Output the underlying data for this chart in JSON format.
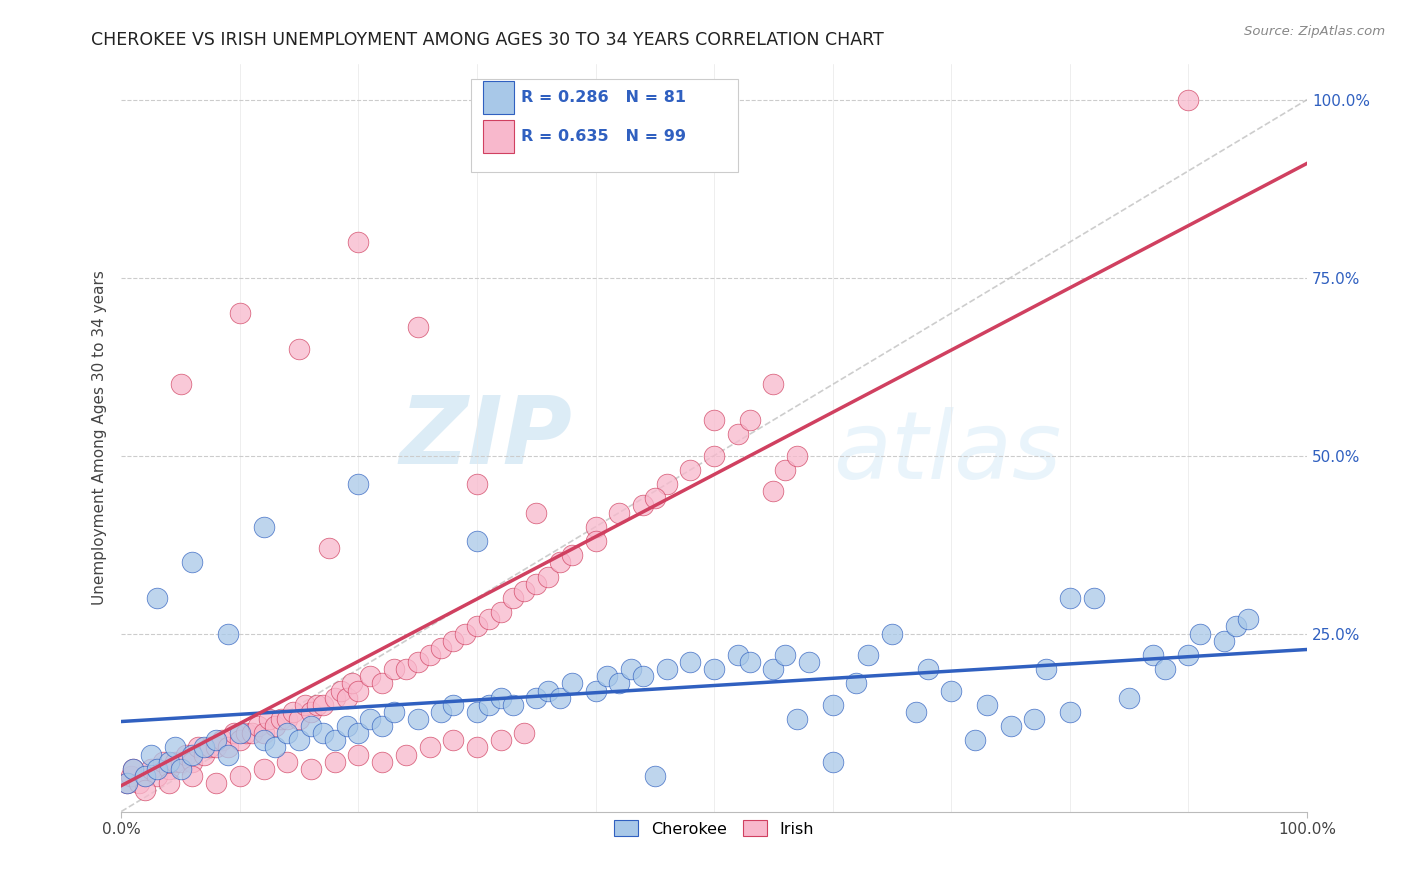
{
  "title": "CHEROKEE VS IRISH UNEMPLOYMENT AMONG AGES 30 TO 34 YEARS CORRELATION CHART",
  "source": "Source: ZipAtlas.com",
  "ylabel": "Unemployment Among Ages 30 to 34 years",
  "xlim": [
    0.0,
    1.0
  ],
  "ylim": [
    0.0,
    1.05
  ],
  "ytick_labels": [
    "",
    "25.0%",
    "50.0%",
    "75.0%",
    "100.0%"
  ],
  "ytick_values": [
    0.0,
    0.25,
    0.5,
    0.75,
    1.0
  ],
  "cherokee_R": "0.286",
  "cherokee_N": "81",
  "irish_R": "0.635",
  "irish_N": "99",
  "cherokee_color": "#a8c8e8",
  "irish_color": "#f8b8cc",
  "cherokee_line_color": "#3060c0",
  "irish_line_color": "#d04060",
  "trend_line_color": "#c8c8c8",
  "background_color": "#ffffff",
  "legend_label_color": "#3060c0",
  "cherokee_scatter_x": [
    0.005,
    0.01,
    0.02,
    0.025,
    0.03,
    0.04,
    0.045,
    0.05,
    0.06,
    0.07,
    0.08,
    0.09,
    0.1,
    0.12,
    0.13,
    0.14,
    0.15,
    0.16,
    0.17,
    0.18,
    0.19,
    0.2,
    0.21,
    0.22,
    0.23,
    0.25,
    0.27,
    0.28,
    0.3,
    0.31,
    0.32,
    0.33,
    0.35,
    0.36,
    0.37,
    0.38,
    0.4,
    0.41,
    0.42,
    0.43,
    0.44,
    0.46,
    0.48,
    0.5,
    0.52,
    0.53,
    0.55,
    0.56,
    0.57,
    0.58,
    0.6,
    0.62,
    0.63,
    0.65,
    0.67,
    0.68,
    0.7,
    0.72,
    0.73,
    0.75,
    0.77,
    0.78,
    0.8,
    0.82,
    0.85,
    0.87,
    0.88,
    0.9,
    0.91,
    0.93,
    0.94,
    0.95,
    0.03,
    0.06,
    0.09,
    0.12,
    0.2,
    0.3,
    0.45,
    0.6,
    0.8
  ],
  "cherokee_scatter_y": [
    0.04,
    0.06,
    0.05,
    0.08,
    0.06,
    0.07,
    0.09,
    0.06,
    0.08,
    0.09,
    0.1,
    0.08,
    0.11,
    0.1,
    0.09,
    0.11,
    0.1,
    0.12,
    0.11,
    0.1,
    0.12,
    0.11,
    0.13,
    0.12,
    0.14,
    0.13,
    0.14,
    0.15,
    0.14,
    0.15,
    0.16,
    0.15,
    0.16,
    0.17,
    0.16,
    0.18,
    0.17,
    0.19,
    0.18,
    0.2,
    0.19,
    0.2,
    0.21,
    0.2,
    0.22,
    0.21,
    0.2,
    0.22,
    0.13,
    0.21,
    0.15,
    0.18,
    0.22,
    0.25,
    0.14,
    0.2,
    0.17,
    0.1,
    0.15,
    0.12,
    0.13,
    0.2,
    0.14,
    0.3,
    0.16,
    0.22,
    0.2,
    0.22,
    0.25,
    0.24,
    0.26,
    0.27,
    0.3,
    0.35,
    0.25,
    0.4,
    0.46,
    0.38,
    0.05,
    0.07,
    0.3
  ],
  "irish_scatter_x": [
    0.005,
    0.008,
    0.01,
    0.015,
    0.02,
    0.025,
    0.03,
    0.035,
    0.04,
    0.045,
    0.05,
    0.055,
    0.06,
    0.065,
    0.07,
    0.075,
    0.08,
    0.085,
    0.09,
    0.095,
    0.1,
    0.105,
    0.11,
    0.115,
    0.12,
    0.125,
    0.13,
    0.135,
    0.14,
    0.145,
    0.15,
    0.155,
    0.16,
    0.165,
    0.17,
    0.175,
    0.18,
    0.185,
    0.19,
    0.195,
    0.2,
    0.21,
    0.22,
    0.23,
    0.24,
    0.25,
    0.26,
    0.27,
    0.28,
    0.29,
    0.3,
    0.31,
    0.32,
    0.33,
    0.34,
    0.35,
    0.36,
    0.37,
    0.38,
    0.4,
    0.42,
    0.44,
    0.46,
    0.48,
    0.5,
    0.52,
    0.53,
    0.55,
    0.56,
    0.57,
    0.02,
    0.04,
    0.06,
    0.08,
    0.1,
    0.12,
    0.14,
    0.16,
    0.18,
    0.2,
    0.22,
    0.24,
    0.26,
    0.28,
    0.3,
    0.32,
    0.34,
    0.05,
    0.1,
    0.15,
    0.2,
    0.25,
    0.3,
    0.35,
    0.4,
    0.45,
    0.5,
    0.55,
    0.9
  ],
  "irish_scatter_y": [
    0.04,
    0.05,
    0.06,
    0.04,
    0.05,
    0.06,
    0.05,
    0.07,
    0.06,
    0.07,
    0.07,
    0.08,
    0.07,
    0.09,
    0.08,
    0.09,
    0.09,
    0.1,
    0.09,
    0.11,
    0.1,
    0.11,
    0.11,
    0.12,
    0.11,
    0.13,
    0.12,
    0.13,
    0.13,
    0.14,
    0.13,
    0.15,
    0.14,
    0.15,
    0.15,
    0.37,
    0.16,
    0.17,
    0.16,
    0.18,
    0.17,
    0.19,
    0.18,
    0.2,
    0.2,
    0.21,
    0.22,
    0.23,
    0.24,
    0.25,
    0.26,
    0.27,
    0.28,
    0.3,
    0.31,
    0.32,
    0.33,
    0.35,
    0.36,
    0.4,
    0.42,
    0.43,
    0.46,
    0.48,
    0.5,
    0.53,
    0.55,
    0.45,
    0.48,
    0.5,
    0.03,
    0.04,
    0.05,
    0.04,
    0.05,
    0.06,
    0.07,
    0.06,
    0.07,
    0.08,
    0.07,
    0.08,
    0.09,
    0.1,
    0.09,
    0.1,
    0.11,
    0.6,
    0.7,
    0.65,
    0.8,
    0.68,
    0.46,
    0.42,
    0.38,
    0.44,
    0.55,
    0.6,
    1.0
  ]
}
